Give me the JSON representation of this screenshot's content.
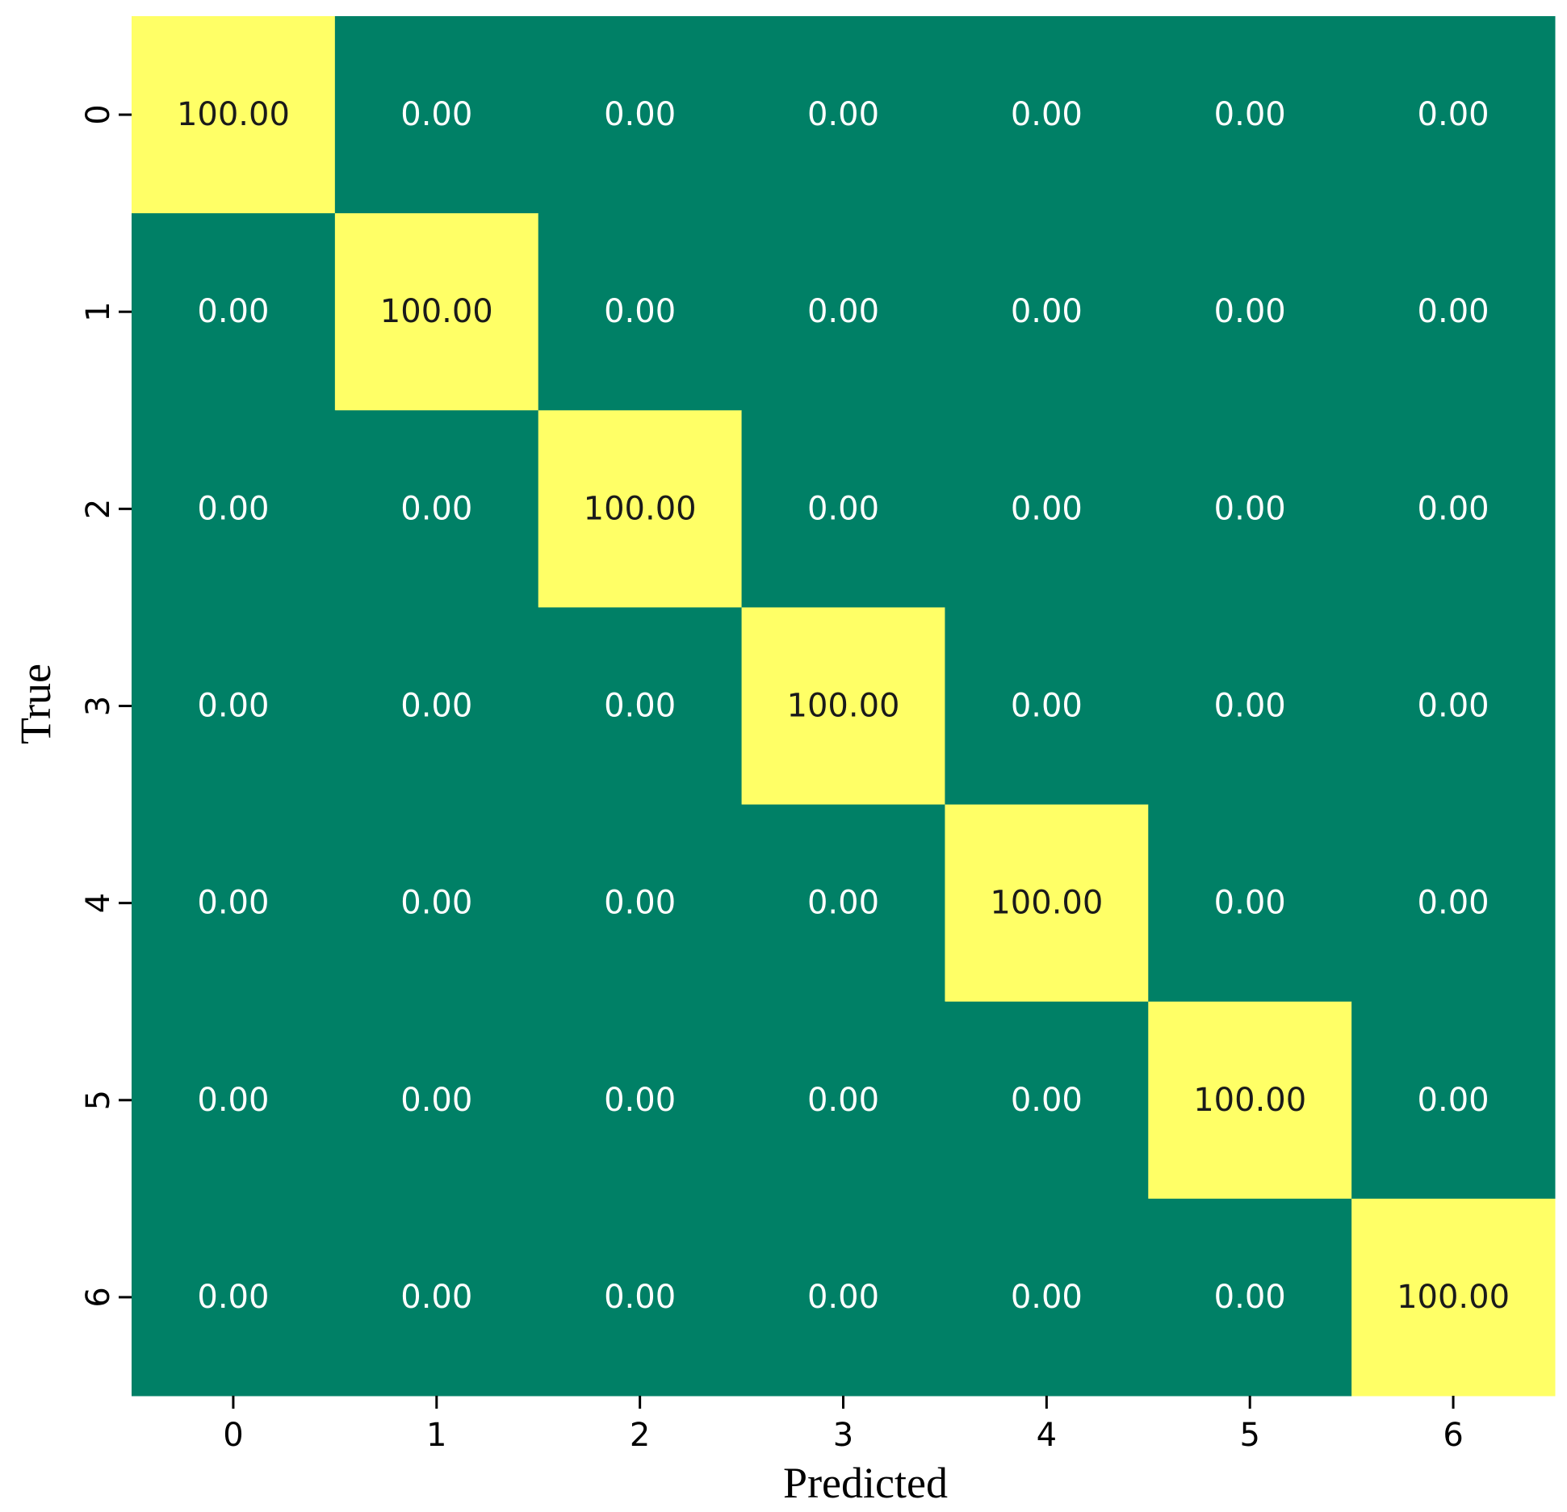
{
  "chart_data": {
    "type": "heatmap",
    "xlabel": "Predicted",
    "ylabel": "True",
    "x_categories": [
      "0",
      "1",
      "2",
      "3",
      "4",
      "5",
      "6"
    ],
    "y_categories": [
      "0",
      "1",
      "2",
      "3",
      "4",
      "5",
      "6"
    ],
    "values": [
      [
        100.0,
        0.0,
        0.0,
        0.0,
        0.0,
        0.0,
        0.0
      ],
      [
        0.0,
        100.0,
        0.0,
        0.0,
        0.0,
        0.0,
        0.0
      ],
      [
        0.0,
        0.0,
        100.0,
        0.0,
        0.0,
        0.0,
        0.0
      ],
      [
        0.0,
        0.0,
        0.0,
        100.0,
        0.0,
        0.0,
        0.0
      ],
      [
        0.0,
        0.0,
        0.0,
        0.0,
        100.0,
        0.0,
        0.0
      ],
      [
        0.0,
        0.0,
        0.0,
        0.0,
        0.0,
        100.0,
        0.0
      ],
      [
        0.0,
        0.0,
        0.0,
        0.0,
        0.0,
        0.0,
        100.0
      ]
    ],
    "value_format": "2 decimals",
    "value_range": [
      0,
      100
    ],
    "colors": {
      "low": "#008066",
      "high": "#FFFF66",
      "text_on_low": "#ffffff",
      "text_on_high": "#1a1a1a"
    },
    "colorbar": false,
    "grid": false
  }
}
